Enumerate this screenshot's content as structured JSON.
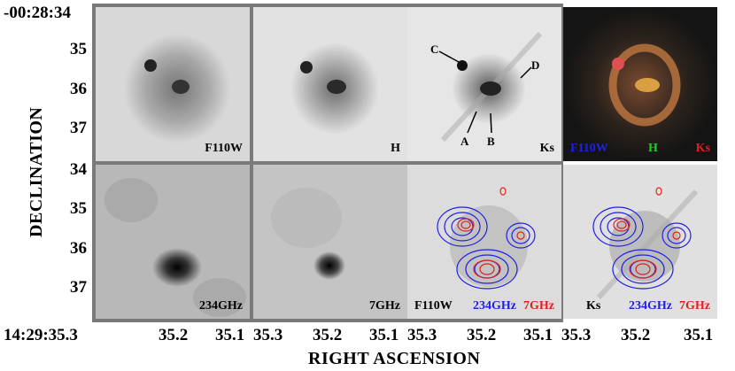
{
  "y_axis": {
    "title": "DECLINATION",
    "top_label": "-00:28:34",
    "top_ticks": [
      "35",
      "36",
      "37"
    ],
    "bottom_ticks": [
      "34",
      "35",
      "36",
      "37"
    ]
  },
  "x_axis": {
    "title": "RIGHT ASCENSION",
    "first_label": "14:29:35.3",
    "ticks": [
      "35.3",
      "35.2",
      "35.1"
    ]
  },
  "panels": {
    "p1": {
      "band": "F110W"
    },
    "p2": {
      "band": "H"
    },
    "p3": {
      "band": "Ks",
      "annotations": [
        "A",
        "B",
        "C",
        "D"
      ]
    },
    "p4": {
      "bands": [
        "F110W",
        "H",
        "Ks"
      ]
    },
    "p5": {
      "band": "234GHz"
    },
    "p6": {
      "band": "7GHz"
    },
    "p7": {
      "bands": [
        "F110W",
        "234GHz",
        "7GHz"
      ]
    },
    "p8": {
      "bands": [
        "Ks",
        "234GHz",
        "7GHz"
      ]
    }
  },
  "colors": {
    "blue_contour": "#2020e0",
    "red_contour": "#e02020",
    "frame": "#7a7a7a"
  }
}
